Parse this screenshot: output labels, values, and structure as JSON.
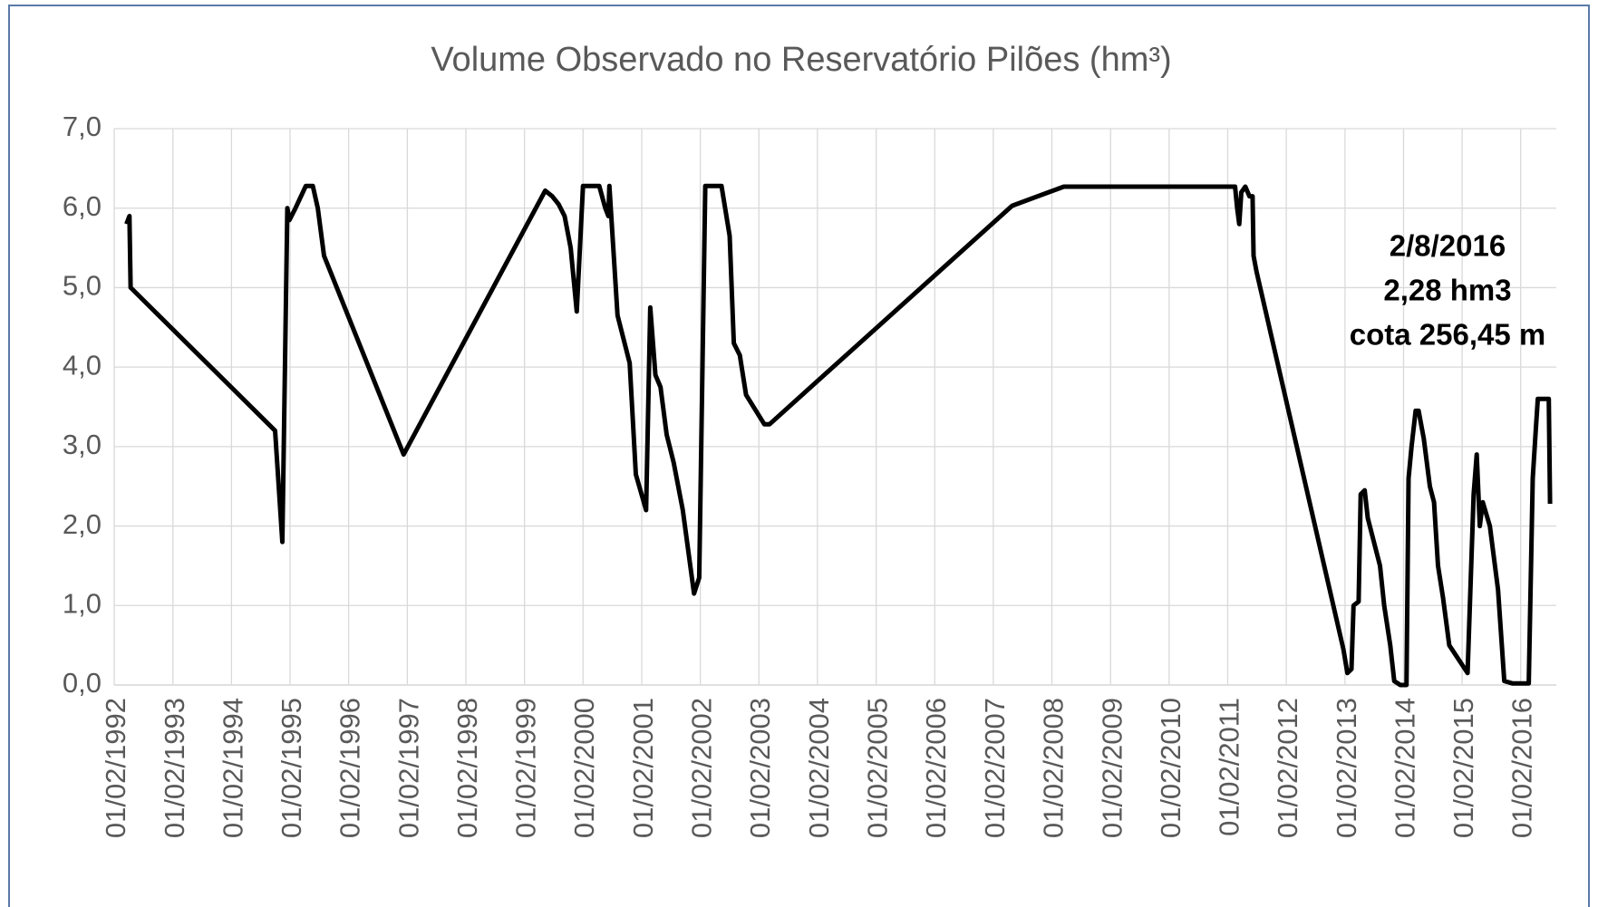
{
  "chart_data": {
    "type": "line",
    "title": "Volume Observado no Reservatório Pilões (hm³)",
    "color": "#000000",
    "grid": true,
    "annotations": [
      "2/8/2016",
      "2,28 hm3",
      "cota 256,45 m"
    ],
    "xlim": [
      "1992-02-01",
      "2016-09-10"
    ],
    "xticks": [
      {
        "value": "1992-02-01",
        "label": "01/02/1992"
      },
      {
        "value": "1993-02-01",
        "label": "01/02/1993"
      },
      {
        "value": "1994-02-01",
        "label": "01/02/1994"
      },
      {
        "value": "1995-02-01",
        "label": "01/02/1995"
      },
      {
        "value": "1996-02-01",
        "label": "01/02/1996"
      },
      {
        "value": "1997-02-01",
        "label": "01/02/1997"
      },
      {
        "value": "1998-02-01",
        "label": "01/02/1998"
      },
      {
        "value": "1999-02-01",
        "label": "01/02/1999"
      },
      {
        "value": "2000-02-01",
        "label": "01/02/2000"
      },
      {
        "value": "2001-02-01",
        "label": "01/02/2001"
      },
      {
        "value": "2002-02-01",
        "label": "01/02/2002"
      },
      {
        "value": "2003-02-01",
        "label": "01/02/2003"
      },
      {
        "value": "2004-02-01",
        "label": "01/02/2004"
      },
      {
        "value": "2005-02-01",
        "label": "01/02/2005"
      },
      {
        "value": "2006-02-01",
        "label": "01/02/2006"
      },
      {
        "value": "2007-02-01",
        "label": "01/02/2007"
      },
      {
        "value": "2008-02-01",
        "label": "01/02/2008"
      },
      {
        "value": "2009-02-01",
        "label": "01/02/2009"
      },
      {
        "value": "2010-02-01",
        "label": "01/02/2010"
      },
      {
        "value": "2011-02-01",
        "label": "01/02/2011"
      },
      {
        "value": "2012-02-01",
        "label": "01/02/2012"
      },
      {
        "value": "2013-02-01",
        "label": "01/02/2013"
      },
      {
        "value": "2014-02-01",
        "label": "01/02/2014"
      },
      {
        "value": "2015-02-01",
        "label": "01/02/2015"
      },
      {
        "value": "2016-02-01",
        "label": "01/02/2016"
      }
    ],
    "ylim": [
      0,
      7
    ],
    "yticks": [
      {
        "value": 0,
        "label": "0,0"
      },
      {
        "value": 1,
        "label": "1,0"
      },
      {
        "value": 2,
        "label": "2,0"
      },
      {
        "value": 3,
        "label": "3,0"
      },
      {
        "value": 4,
        "label": "4,0"
      },
      {
        "value": 5,
        "label": "5,0"
      },
      {
        "value": 6,
        "label": "6,0"
      },
      {
        "value": 7,
        "label": "7,0"
      }
    ],
    "x": [
      "1992-04-17",
      "1992-05-06",
      "1992-05-13",
      "1994-10-31",
      "1994-12-15",
      "1995-01-15",
      "1995-01-28",
      "1995-03-07",
      "1995-05-10",
      "1995-06-23",
      "1995-07-24",
      "1995-09-01",
      "1997-01-09",
      "1999-06-10",
      "1999-07-24",
      "1999-09-01",
      "1999-10-09",
      "1999-11-16",
      "1999-12-24",
      "2000-02-01",
      "2000-05-12",
      "2000-06-19",
      "2000-07-08",
      "2000-07-14",
      "2000-09-03",
      "2000-11-18",
      "2000-12-26",
      "2001-02-28",
      "2001-03-26",
      "2001-04-27",
      "2001-05-29",
      "2001-07-06",
      "2001-08-19",
      "2001-10-15",
      "2001-12-24",
      "2002-01-25",
      "2002-03-04",
      "2002-06-13",
      "2002-08-03",
      "2002-08-29",
      "2002-10-05",
      "2002-11-13",
      "2003-03-07",
      "2003-04-08",
      "2007-05-29",
      "2008-04-16",
      "2011-03-19",
      "2011-04-01",
      "2011-04-14",
      "2011-04-27",
      "2011-05-22",
      "2011-06-17",
      "2011-07-06",
      "2011-07-12",
      "2011-07-31",
      "2013-01-22",
      "2013-02-16",
      "2013-03-13",
      "2013-03-26",
      "2013-04-27",
      "2013-05-10",
      "2013-06-04",
      "2013-06-23",
      "2013-09-07",
      "2013-10-03",
      "2013-11-10",
      "2013-12-05",
      "2014-01-12",
      "2014-02-19",
      "2014-03-04",
      "2014-03-23",
      "2014-04-17",
      "2014-05-06",
      "2014-06-07",
      "2014-07-15",
      "2014-08-10",
      "2014-09-04",
      "2014-10-05",
      "2014-11-13",
      "2015-03-07",
      "2015-04-14",
      "2015-05-03",
      "2015-05-22",
      "2015-06-10",
      "2015-07-24",
      "2015-09-13",
      "2015-10-22",
      "2015-12-11",
      "2016-03-22",
      "2016-04-16",
      "2016-05-05",
      "2016-05-18",
      "2016-07-25",
      "2016-08-02"
    ],
    "values": [
      5.8,
      5.9,
      5.0,
      3.2,
      1.8,
      6.0,
      5.85,
      6.0,
      6.28,
      6.28,
      6.0,
      5.4,
      2.9,
      6.22,
      6.15,
      6.05,
      5.9,
      5.5,
      4.7,
      6.28,
      6.28,
      6.0,
      5.9,
      6.28,
      4.65,
      4.05,
      2.65,
      2.2,
      4.75,
      3.9,
      3.75,
      3.15,
      2.8,
      2.2,
      1.15,
      1.35,
      6.28,
      6.28,
      5.65,
      4.3,
      4.15,
      3.65,
      3.28,
      3.28,
      6.03,
      6.27,
      6.27,
      6.0,
      5.8,
      6.2,
      6.27,
      6.15,
      6.15,
      5.4,
      5.2,
      0.45,
      0.15,
      0.2,
      1.0,
      1.05,
      2.4,
      2.45,
      2.1,
      1.5,
      1.0,
      0.5,
      0.05,
      0.0,
      0.0,
      2.6,
      3.0,
      3.45,
      3.45,
      3.1,
      2.5,
      2.3,
      1.5,
      1.1,
      0.5,
      0.15,
      2.4,
      2.9,
      2.0,
      2.3,
      2.0,
      1.2,
      0.05,
      0.02,
      0.02,
      2.6,
      3.2,
      3.6,
      3.6,
      2.28
    ]
  }
}
